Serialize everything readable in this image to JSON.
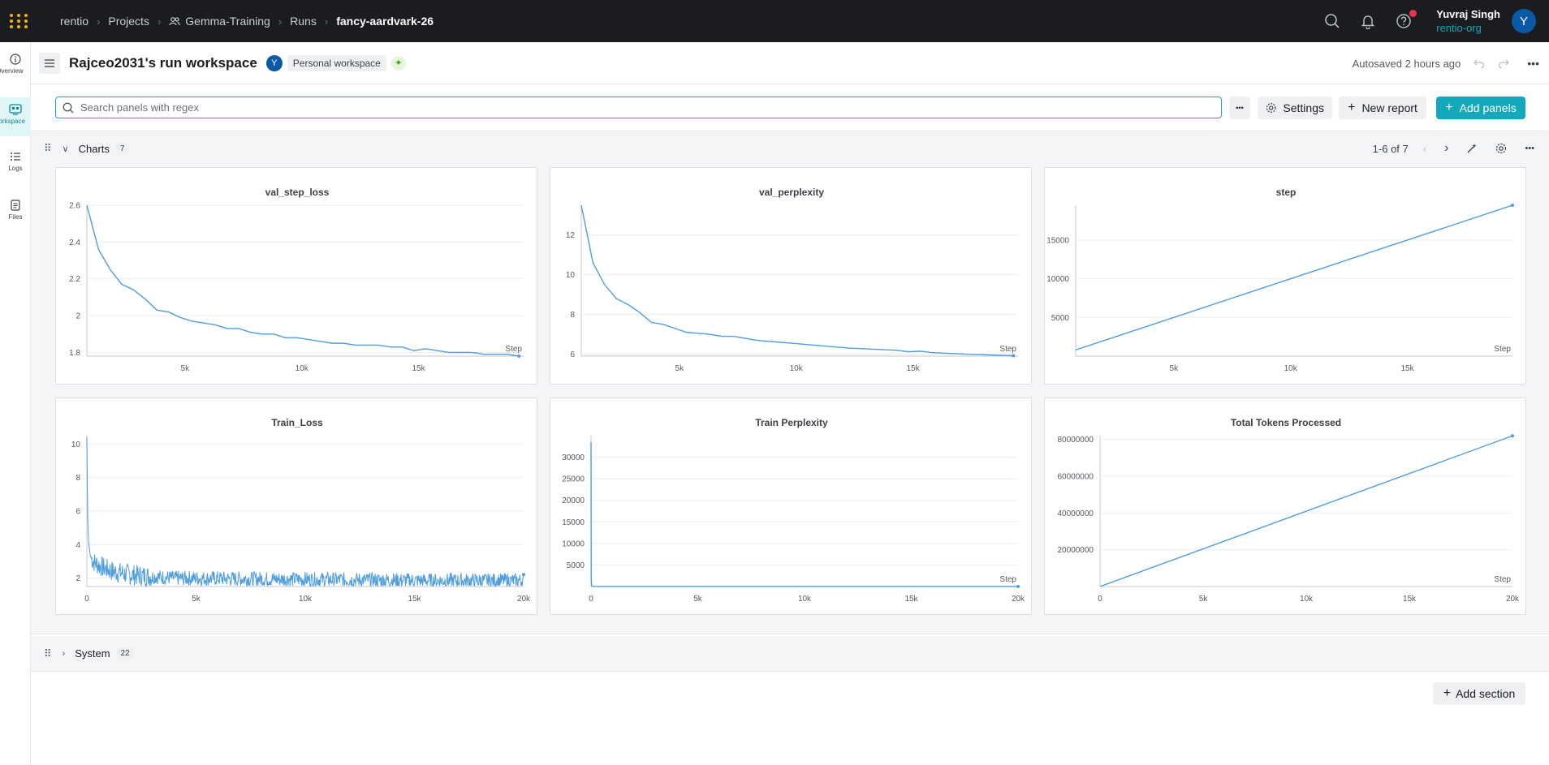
{
  "topbar": {
    "breadcrumbs": [
      "rentio",
      "Projects",
      "Gemma-Training",
      "Runs",
      "fancy-aardvark-26"
    ],
    "user_name": "Yuvraj Singh",
    "user_org": "rentio-org",
    "avatar_letter": "Y"
  },
  "leftnav": {
    "items": [
      {
        "label": "Overview",
        "icon": "info-icon"
      },
      {
        "label": "Workspace",
        "icon": "workspace-icon",
        "active": true
      },
      {
        "label": "Logs",
        "icon": "list-icon"
      },
      {
        "label": "Files",
        "icon": "file-icon"
      }
    ]
  },
  "header": {
    "title": "Rajceo2031's run workspace",
    "badge_avatar": "Y",
    "badge_label": "Personal workspace",
    "autosave": "Autosaved 2 hours ago"
  },
  "toolbar": {
    "search_placeholder": "Search panels with regex",
    "more_label": "•••",
    "settings_label": "Settings",
    "new_report_label": "New report",
    "add_panels_label": "Add panels"
  },
  "sections": {
    "charts": {
      "title": "Charts",
      "count": "7",
      "pager": "1-6 of 7"
    },
    "system": {
      "title": "System",
      "count": "22"
    }
  },
  "add_section_label": "Add section",
  "colors": {
    "accent": "#13a9ba",
    "series": "#4d9de0",
    "topbar": "#1a1c1f"
  },
  "chart_data": [
    {
      "type": "line",
      "title": "val_step_loss",
      "xlabel": "Step",
      "xlim": [
        800,
        19500
      ],
      "ylim": [
        1.78,
        2.6
      ],
      "xticks": [
        {
          "v": 5000,
          "t": "5k"
        },
        {
          "v": 10000,
          "t": "10k"
        },
        {
          "v": 15000,
          "t": "15k"
        }
      ],
      "yticks": [
        {
          "v": 1.8,
          "t": "1.8"
        },
        {
          "v": 2.0,
          "t": "2"
        },
        {
          "v": 2.2,
          "t": "2.2"
        },
        {
          "v": 2.4,
          "t": "2.4"
        },
        {
          "v": 2.6,
          "t": "2.6"
        }
      ],
      "x": [
        800,
        1300,
        1800,
        2300,
        2800,
        3300,
        3800,
        4300,
        4800,
        5300,
        5800,
        6300,
        6800,
        7300,
        7800,
        8300,
        8800,
        9300,
        9800,
        10300,
        10800,
        11300,
        11800,
        12300,
        12800,
        13300,
        13800,
        14300,
        14800,
        15300,
        15800,
        16300,
        16800,
        17300,
        17800,
        18300,
        18800,
        19300
      ],
      "y": [
        2.6,
        2.36,
        2.25,
        2.17,
        2.14,
        2.09,
        2.03,
        2.02,
        1.99,
        1.97,
        1.96,
        1.95,
        1.93,
        1.93,
        1.91,
        1.9,
        1.9,
        1.88,
        1.88,
        1.87,
        1.86,
        1.85,
        1.85,
        1.84,
        1.84,
        1.84,
        1.83,
        1.83,
        1.81,
        1.82,
        1.81,
        1.8,
        1.8,
        1.8,
        1.79,
        1.79,
        1.79,
        1.78
      ]
    },
    {
      "type": "line",
      "title": "val_perplexity",
      "xlabel": "Step",
      "xlim": [
        800,
        19500
      ],
      "ylim": [
        5.9,
        13.5
      ],
      "xticks": [
        {
          "v": 5000,
          "t": "5k"
        },
        {
          "v": 10000,
          "t": "10k"
        },
        {
          "v": 15000,
          "t": "15k"
        }
      ],
      "yticks": [
        {
          "v": 6,
          "t": "6"
        },
        {
          "v": 8,
          "t": "8"
        },
        {
          "v": 10,
          "t": "10"
        },
        {
          "v": 12,
          "t": "12"
        }
      ],
      "x": [
        800,
        1300,
        1800,
        2300,
        2800,
        3300,
        3800,
        4300,
        4800,
        5300,
        5800,
        6300,
        6800,
        7300,
        7800,
        8300,
        8800,
        9300,
        9800,
        10300,
        10800,
        11300,
        11800,
        12300,
        12800,
        13300,
        13800,
        14300,
        14800,
        15300,
        15800,
        16300,
        16800,
        17300,
        17800,
        18300,
        18800,
        19300
      ],
      "y": [
        13.5,
        10.6,
        9.5,
        8.8,
        8.5,
        8.1,
        7.6,
        7.5,
        7.3,
        7.1,
        7.05,
        7.0,
        6.9,
        6.9,
        6.8,
        6.7,
        6.65,
        6.6,
        6.55,
        6.5,
        6.45,
        6.4,
        6.35,
        6.3,
        6.28,
        6.25,
        6.22,
        6.2,
        6.12,
        6.15,
        6.08,
        6.05,
        6.03,
        6.0,
        5.98,
        5.96,
        5.94,
        5.92
      ]
    },
    {
      "type": "line",
      "title": "step",
      "xlabel": "Step",
      "xlim": [
        800,
        19500
      ],
      "ylim": [
        0,
        19500
      ],
      "xticks": [
        {
          "v": 5000,
          "t": "5k"
        },
        {
          "v": 10000,
          "t": "10k"
        },
        {
          "v": 15000,
          "t": "15k"
        }
      ],
      "yticks": [
        {
          "v": 5000,
          "t": "5000"
        },
        {
          "v": 10000,
          "t": "10000"
        },
        {
          "v": 15000,
          "t": "15000"
        }
      ],
      "x": [
        800,
        19500
      ],
      "y": [
        800,
        19500
      ]
    },
    {
      "type": "line",
      "title": "Train_Loss",
      "xlabel": "",
      "xlim": [
        0,
        20000
      ],
      "ylim": [
        1.5,
        10.5
      ],
      "xticks": [
        {
          "v": 0,
          "t": "0"
        },
        {
          "v": 5000,
          "t": "5k"
        },
        {
          "v": 10000,
          "t": "10k"
        },
        {
          "v": 15000,
          "t": "15k"
        },
        {
          "v": 20000,
          "t": "20k"
        }
      ],
      "yticks": [
        {
          "v": 2,
          "t": "2"
        },
        {
          "v": 4,
          "t": "4"
        },
        {
          "v": 6,
          "t": "6"
        },
        {
          "v": 8,
          "t": "8"
        },
        {
          "v": 10,
          "t": "10"
        }
      ],
      "x": [
        0,
        20,
        40,
        60,
        80,
        100,
        150,
        200,
        300,
        500,
        800,
        1200,
        2000,
        4000,
        8000,
        12000,
        16000,
        20000
      ],
      "y": [
        10.4,
        7.5,
        5.6,
        4.8,
        4.2,
        3.9,
        3.4,
        3.2,
        3.0,
        2.8,
        2.6,
        2.4,
        2.2,
        2.0,
        1.95,
        1.9,
        1.85,
        1.85
      ],
      "noise": 0.45
    },
    {
      "type": "line",
      "title": "Train Perplexity",
      "xlabel": "Step",
      "xlim": [
        0,
        20000
      ],
      "ylim": [
        0,
        35000
      ],
      "xticks": [
        {
          "v": 0,
          "t": "0"
        },
        {
          "v": 5000,
          "t": "5k"
        },
        {
          "v": 10000,
          "t": "10k"
        },
        {
          "v": 15000,
          "t": "15k"
        },
        {
          "v": 20000,
          "t": "20k"
        }
      ],
      "yticks": [
        {
          "v": 5000,
          "t": "5000"
        },
        {
          "v": 10000,
          "t": "10000"
        },
        {
          "v": 15000,
          "t": "15000"
        },
        {
          "v": 20000,
          "t": "20000"
        },
        {
          "v": 25000,
          "t": "25000"
        },
        {
          "v": 30000,
          "t": "30000"
        }
      ],
      "x": [
        0,
        10,
        30,
        60,
        100,
        300,
        1000,
        5000,
        10000,
        15000,
        20000
      ],
      "y": [
        33500,
        2000,
        120,
        60,
        30,
        15,
        9,
        7,
        6.5,
        6.3,
        6.2
      ]
    },
    {
      "type": "line",
      "title": "Total Tokens Processed",
      "xlabel": "Step",
      "xlim": [
        0,
        20000
      ],
      "ylim": [
        0,
        82000000
      ],
      "xticks": [
        {
          "v": 0,
          "t": "0"
        },
        {
          "v": 5000,
          "t": "5k"
        },
        {
          "v": 10000,
          "t": "10k"
        },
        {
          "v": 15000,
          "t": "15k"
        },
        {
          "v": 20000,
          "t": "20k"
        }
      ],
      "yticks": [
        {
          "v": 20000000,
          "t": "20000000"
        },
        {
          "v": 40000000,
          "t": "40000000"
        },
        {
          "v": 60000000,
          "t": "60000000"
        },
        {
          "v": 80000000,
          "t": "80000000"
        }
      ],
      "x": [
        0,
        20000
      ],
      "y": [
        0,
        81900000
      ]
    }
  ]
}
